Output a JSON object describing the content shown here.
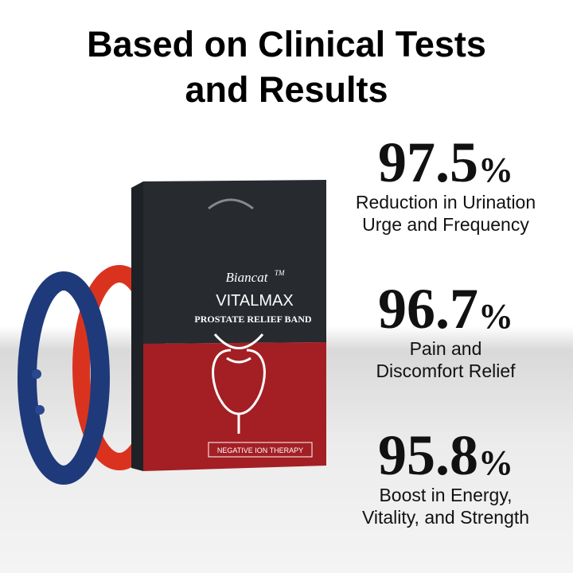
{
  "title": {
    "lines": [
      "Based on Clinical Tests",
      "and Results"
    ]
  },
  "product": {
    "brand": "Biancat",
    "trademark": "TM",
    "name": "VITALMAX",
    "subtitle": "PROSTATE RELIEF BAND",
    "footer": "NEGATIVE ION THERAPY"
  },
  "stats": [
    {
      "value": 97.5,
      "unit": "%",
      "lines": [
        "Reduction in Urination",
        "Urge and Frequency"
      ]
    },
    {
      "value": 96.7,
      "unit": "%",
      "lines": [
        "Pain and",
        "Discomfort Relief"
      ]
    },
    {
      "value": 95.8,
      "unit": "%",
      "lines": [
        "Boost in Energy,",
        "Vitality, and Strength"
      ]
    }
  ]
}
